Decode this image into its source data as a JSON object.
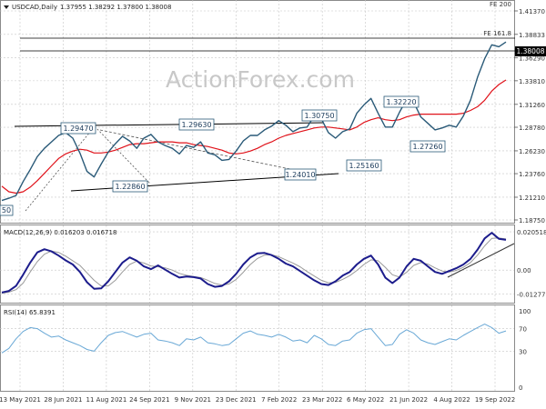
{
  "header": {
    "arrow_icon": "triangle-down-icon",
    "symbol": "USDCAD,Daily",
    "ohlc": "1.37955 1.38292 1.37800 1.38008"
  },
  "watermark": "ActionForex.com",
  "chart_data": [
    {
      "id": "price",
      "type": "line",
      "title": "USDCAD,Daily",
      "y_ticks": [
        "1.41370",
        "1.38833",
        "1.36290",
        "1.33810",
        "1.31260",
        "1.28780",
        "1.26230",
        "1.23760",
        "1.21210",
        "1.18750"
      ],
      "ylim": [
        1.1875,
        1.4137
      ],
      "x_ticks": [
        "13 May 2021",
        "28 Jun 2021",
        "11 Aug 2021",
        "24 Sep 2021",
        "9 Nov 2021",
        "23 Dec 2021",
        "7 Feb 2022",
        "23 Mar 2022",
        "6 May 2022",
        "21 Jun 2022",
        "4 Aug 2022",
        "19 Sep 2022"
      ],
      "last_price_label": "1.38008",
      "fib_labels": {
        "fe_200": "FE 200",
        "fe_161_8": "FE 161.8"
      },
      "pivot_labels": [
        "1.29470",
        "1.29630",
        "1.30750",
        "1.32220",
        "1.22860",
        "1.24010",
        "1.25160",
        "1.27260"
      ],
      "left_partial_label": "50",
      "series": [
        {
          "values": [
            1.2085,
            1.211,
            1.214,
            1.229,
            1.242,
            1.256,
            1.265,
            1.272,
            1.279,
            1.282,
            1.276,
            1.26,
            1.24,
            1.234,
            1.248,
            1.261,
            1.27,
            1.278,
            1.273,
            1.265,
            1.276,
            1.28,
            1.272,
            1.268,
            1.265,
            1.259,
            1.268,
            1.266,
            1.272,
            1.26,
            1.258,
            1.252,
            1.253,
            1.262,
            1.273,
            1.279,
            1.279,
            1.285,
            1.289,
            1.295,
            1.29,
            1.283,
            1.287,
            1.288,
            1.3,
            1.297,
            1.282,
            1.276,
            1.283,
            1.286,
            1.303,
            1.312,
            1.319,
            1.303,
            1.288,
            1.288,
            1.304,
            1.318,
            1.315,
            1.299,
            1.292,
            1.285,
            1.287,
            1.29,
            1.288,
            1.3,
            1.317,
            1.342,
            1.362,
            1.377,
            1.375,
            1.3801
          ]
        },
        {
          "values": [
            1.224,
            1.218,
            1.2165,
            1.218,
            1.223,
            1.23,
            1.238,
            1.246,
            1.254,
            1.259,
            1.262,
            1.264,
            1.263,
            1.26,
            1.26,
            1.261,
            1.263,
            1.266,
            1.269,
            1.27,
            1.27,
            1.271,
            1.272,
            1.272,
            1.272,
            1.271,
            1.271,
            1.269,
            1.268,
            1.267,
            1.265,
            1.263,
            1.26,
            1.259,
            1.26,
            1.262,
            1.265,
            1.269,
            1.272,
            1.276,
            1.279,
            1.281,
            1.283,
            1.285,
            1.287,
            1.288,
            1.288,
            1.287,
            1.286,
            1.285,
            1.288,
            1.293,
            1.296,
            1.298,
            1.296,
            1.295,
            1.296,
            1.299,
            1.301,
            1.302,
            1.302,
            1.302,
            1.302,
            1.302,
            1.302,
            1.303,
            1.306,
            1.31,
            1.317,
            1.327,
            1.334,
            1.339
          ]
        }
      ]
    },
    {
      "id": "macd",
      "type": "line",
      "title": "MACD(12,26,9) 0.016203 0.016718",
      "y_ticks": [
        "0.020518",
        "0.00",
        "-0.012771"
      ],
      "ylim": [
        -0.0165,
        0.0225
      ],
      "series": [
        {
          "values": [
            -0.012,
            -0.0112,
            -0.0085,
            -0.0025,
            0.004,
            0.0095,
            0.0112,
            0.01,
            0.0078,
            0.0052,
            0.003,
            -0.001,
            -0.0065,
            -0.01,
            -0.0098,
            -0.006,
            -0.001,
            0.004,
            0.0068,
            0.005,
            0.002,
            0.0005,
            0.0025,
            0.0002,
            -0.002,
            -0.004,
            -0.0035,
            -0.0038,
            -0.0045,
            -0.0075,
            -0.009,
            -0.0085,
            -0.006,
            -0.002,
            0.003,
            0.0068,
            0.009,
            0.0092,
            0.008,
            0.006,
            0.0035,
            0.002,
            -0.0005,
            -0.003,
            -0.0055,
            -0.0075,
            -0.008,
            -0.006,
            -0.003,
            -0.001,
            0.003,
            0.006,
            0.0078,
            0.003,
            -0.004,
            -0.007,
            -0.004,
            0.002,
            0.006,
            0.005,
            0.002,
            -0.001,
            -0.002,
            -0.0005,
            0.001,
            0.003,
            0.006,
            0.011,
            0.017,
            0.02,
            0.0168,
            0.0162
          ]
        },
        {
          "values": [
            -0.0125,
            -0.0118,
            -0.0105,
            -0.007,
            -0.001,
            0.0045,
            0.0085,
            0.0102,
            0.0095,
            0.0075,
            0.005,
            0.0025,
            -0.0015,
            -0.0055,
            -0.0085,
            -0.0085,
            -0.0055,
            -0.001,
            0.003,
            0.0048,
            0.0038,
            0.0022,
            0.0018,
            0.0012,
            0.0,
            -0.0018,
            -0.0028,
            -0.0035,
            -0.004,
            -0.0055,
            -0.0072,
            -0.008,
            -0.0075,
            -0.005,
            -0.0012,
            0.003,
            0.0062,
            0.008,
            0.0082,
            0.0072,
            0.0055,
            0.0038,
            0.0018,
            -0.0008,
            -0.0032,
            -0.0055,
            -0.0068,
            -0.0066,
            -0.005,
            -0.003,
            -0.0002,
            0.003,
            0.0055,
            0.005,
            0.0015,
            -0.0025,
            -0.0038,
            -0.0012,
            0.0025,
            0.004,
            0.0032,
            0.0012,
            -0.0005,
            -0.001,
            -0.0002,
            0.0015,
            0.004,
            0.008,
            0.013,
            0.017,
            0.0172,
            0.0167
          ]
        }
      ],
      "trendline_color": "#333333"
    },
    {
      "id": "rsi",
      "type": "line",
      "title": "RSI(14) 65.8391",
      "y_ticks": [
        "100",
        "70",
        "30",
        "0"
      ],
      "ylim": [
        0,
        100
      ],
      "levels": [
        70,
        30
      ],
      "series": [
        {
          "values": [
            27,
            35,
            52,
            65,
            72,
            70,
            62,
            55,
            57,
            50,
            45,
            40,
            33,
            30,
            45,
            58,
            63,
            65,
            60,
            55,
            60,
            62,
            50,
            48,
            45,
            40,
            52,
            50,
            55,
            45,
            43,
            40,
            42,
            52,
            62,
            66,
            60,
            58,
            55,
            60,
            55,
            48,
            50,
            45,
            58,
            52,
            42,
            40,
            48,
            50,
            62,
            68,
            70,
            55,
            40,
            42,
            60,
            68,
            62,
            50,
            45,
            42,
            47,
            52,
            50,
            58,
            65,
            72,
            78,
            72,
            62,
            66
          ]
        }
      ]
    }
  ],
  "colors": {
    "price_line": "#2a5a78",
    "ma_line": "#e0121a",
    "macd_line": "#1c1c8c",
    "signal_line": "#9a9a9a",
    "rsi_line": "#69a8d6",
    "trendline": "#000000",
    "fib_line": "#000000",
    "grid": "#c6c6c6",
    "label_border": "#2a5a78",
    "label_text": "#1a3a5a",
    "current_bg": "#000000",
    "current_text": "#ffffff",
    "axis_text": "#333333",
    "watermark": "#c8c8c8"
  }
}
